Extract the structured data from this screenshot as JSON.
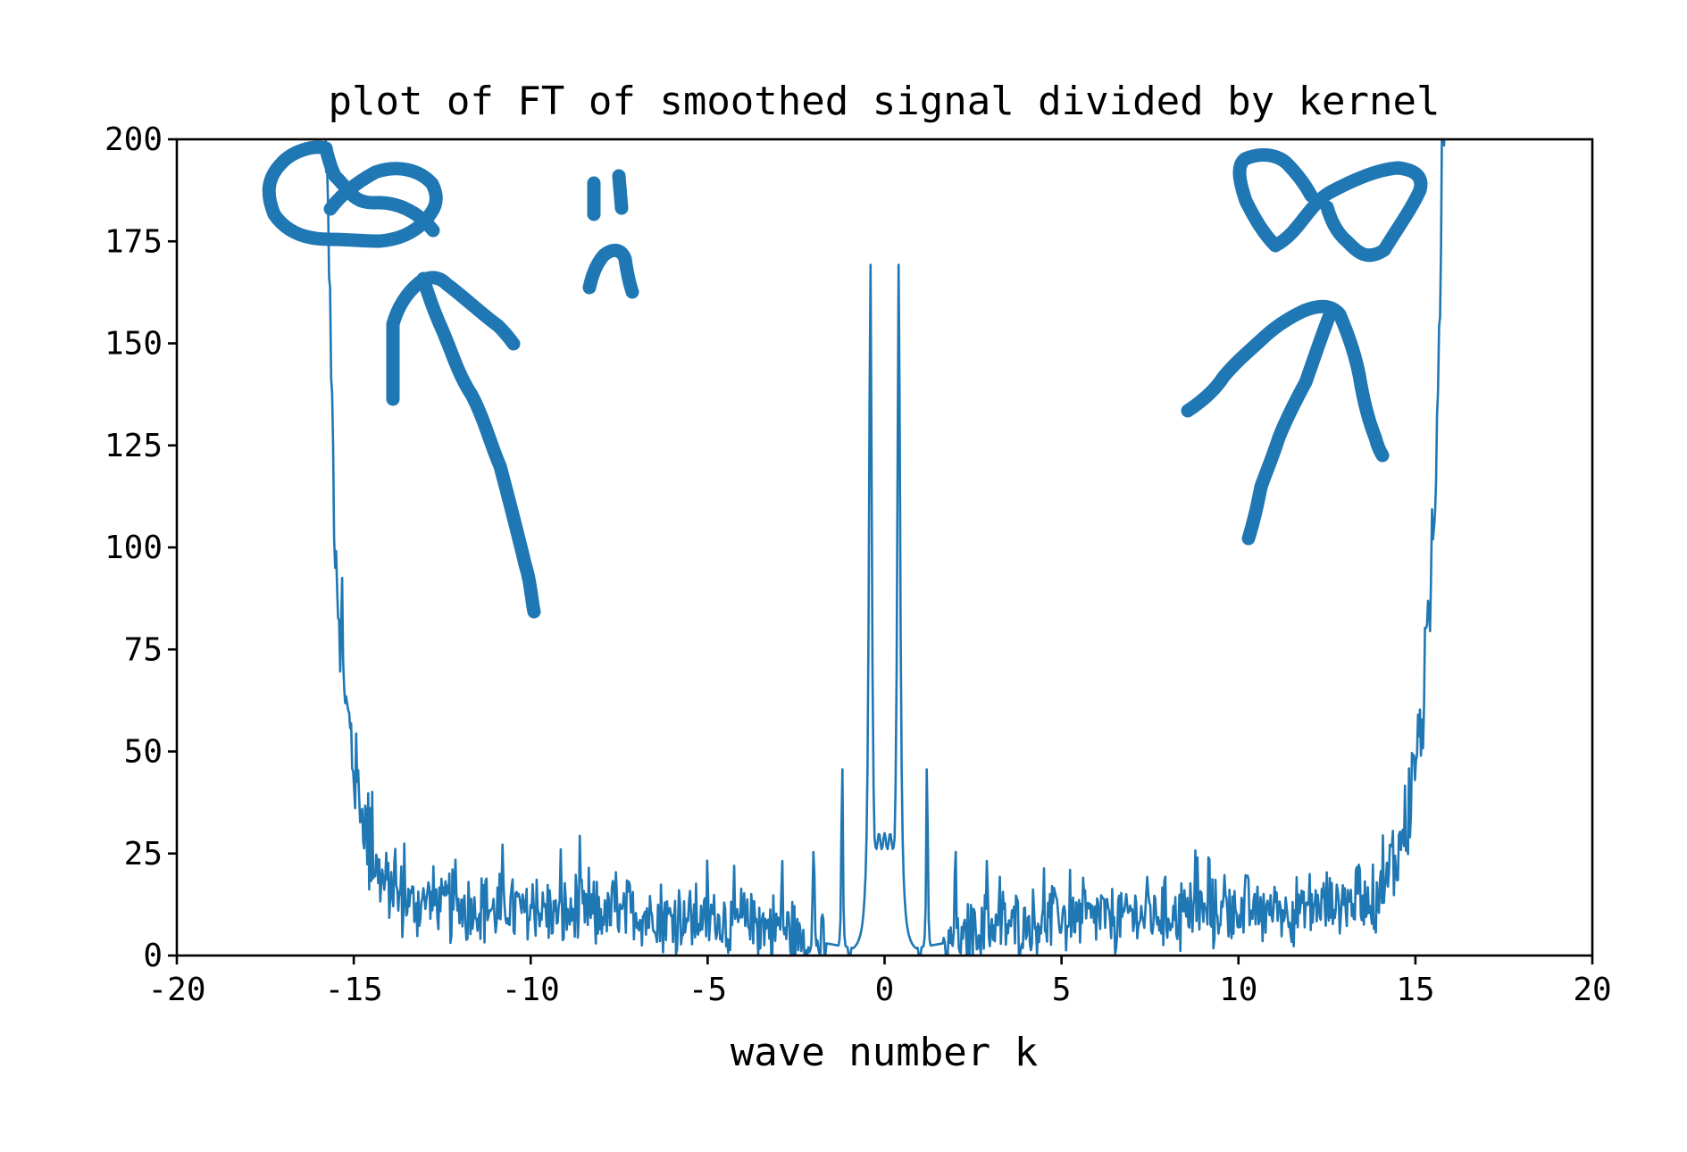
{
  "chart_data": {
    "type": "line",
    "title": "plot of FT of smoothed signal divided by kernel",
    "xlabel": "wave number k",
    "ylabel": "",
    "xlim": [
      -20,
      20
    ],
    "ylim": [
      0,
      200
    ],
    "xticks": [
      -20,
      -15,
      -10,
      -5,
      0,
      5,
      10,
      15,
      20
    ],
    "yticks": [
      0,
      25,
      50,
      75,
      100,
      125,
      150,
      175,
      200
    ],
    "xtick_labels": [
      "-20",
      "-15",
      "-10",
      "-5",
      "0",
      "5",
      "10",
      "15",
      "20"
    ],
    "ytick_labels": [
      "0",
      "25",
      "50",
      "75",
      "100",
      "125",
      "150",
      "175",
      "200"
    ],
    "grid": false,
    "legend": "none",
    "series": [
      {
        "color": "#1f77b4",
        "symmetric": true,
        "noise_floor": [
          [
            1.6,
            0.3
          ],
          [
            2.0,
            2.5
          ],
          [
            2.5,
            5.0
          ],
          [
            3.0,
            7.0
          ],
          [
            4.0,
            8.0
          ],
          [
            5.0,
            9.0
          ],
          [
            7.0,
            10.0
          ],
          [
            9.0,
            10.0
          ],
          [
            10.0,
            11.0
          ],
          [
            11.0,
            11.0
          ],
          [
            12.0,
            12.0
          ],
          [
            13.0,
            13.0
          ],
          [
            13.8,
            14.0
          ],
          [
            14.2,
            18.0
          ],
          [
            14.5,
            25.0
          ],
          [
            14.8,
            36.0
          ],
          [
            15.0,
            48.0
          ],
          [
            15.2,
            60.0
          ],
          [
            15.4,
            82.0
          ],
          [
            15.55,
            110.0
          ],
          [
            15.65,
            150.0
          ],
          [
            15.75,
            190.0
          ],
          [
            15.85,
            220.0
          ]
        ],
        "noise_amplitude": 7,
        "peaks": [
          {
            "k": 0.4,
            "value": 170
          },
          {
            "k": 1.2,
            "value": 57
          },
          {
            "k": 2.0,
            "value": 34
          },
          {
            "k": 2.9,
            "value": 29
          },
          {
            "k": 1.0,
            "value": 0.0
          }
        ]
      }
    ],
    "annotations": {
      "hand_drawn_color": "#1f77b4",
      "description_glyphs": [
        "bow-left",
        "arrow-left",
        "sad-face",
        "bow-right",
        "arrow-right"
      ]
    }
  }
}
